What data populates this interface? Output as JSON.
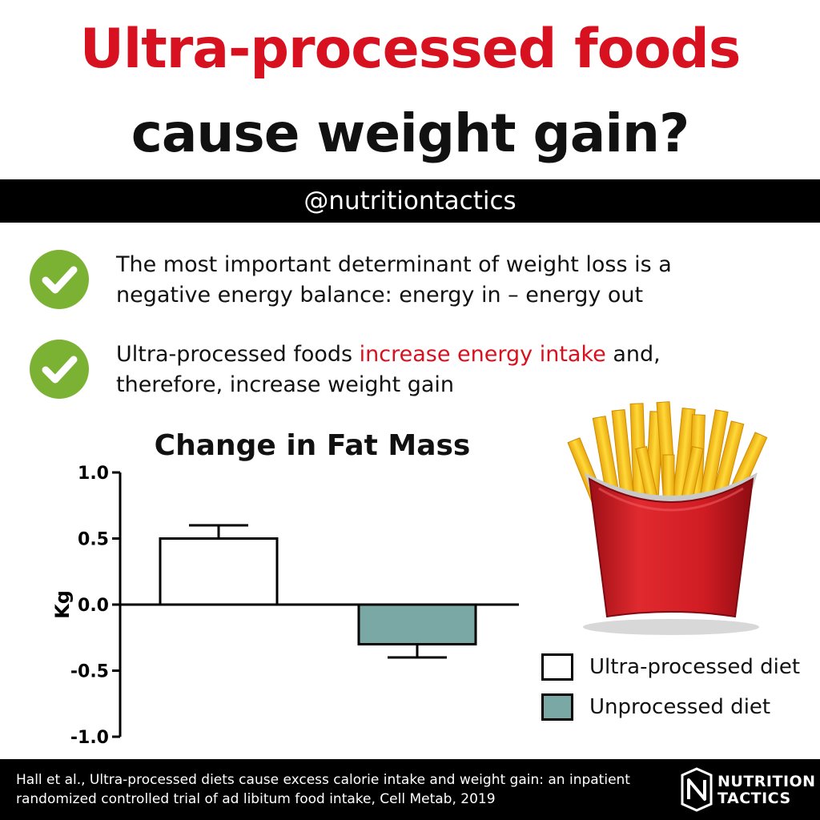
{
  "header": {
    "title_line1": "Ultra-processed foods",
    "title_line2": "cause weight gain?",
    "handle": "@nutritiontactics"
  },
  "bullets": [
    {
      "line1": "The most important determinant of weight loss is a",
      "line2": "negative energy balance: energy in – energy out"
    },
    {
      "prefix": "Ultra-processed foods ",
      "highlight": "increase energy intake",
      "suffix": " and,",
      "line2": "therefore, increase weight gain"
    }
  ],
  "colors": {
    "title_red": "#d7111f",
    "check_green": "#7cb233",
    "ultra_fill": "#ffffff",
    "unprocessed_fill": "#7aa8a4",
    "fries_box_red": "#c8161e",
    "fries_yellow": "#f6c81a"
  },
  "chart_data": {
    "type": "bar",
    "title": "Change in Fat Mass",
    "ylabel": "Kg",
    "xlabel": "",
    "ylim": [
      -1.0,
      1.0
    ],
    "yticks": [
      "1.0",
      "0.5",
      "0.0",
      "-0.5",
      "-1.0"
    ],
    "ytick_values": [
      1.0,
      0.5,
      0.0,
      -0.5,
      -1.0
    ],
    "series": [
      {
        "name": "Ultra-processed diet",
        "value": 0.5,
        "error": 0.1,
        "color": "#ffffff"
      },
      {
        "name": "Unprocessed diet",
        "value": -0.3,
        "error": 0.1,
        "color": "#7aa8a4"
      }
    ],
    "legend": "bottom-right",
    "grid": false
  },
  "icons": {
    "bullet_icon": "check-circle-icon",
    "illustration": "french-fries-icon",
    "logo": "nutrition-tactics-logo"
  },
  "footer": {
    "citation_line1": "Hall et al., Ultra-processed diets cause excess calorie intake and weight gain: an inpatient",
    "citation_line2": "randomized controlled trial of ad libitum food intake, Cell Metab, 2019",
    "logo_line1": "NUTRITION",
    "logo_line2": "TACTICS"
  }
}
